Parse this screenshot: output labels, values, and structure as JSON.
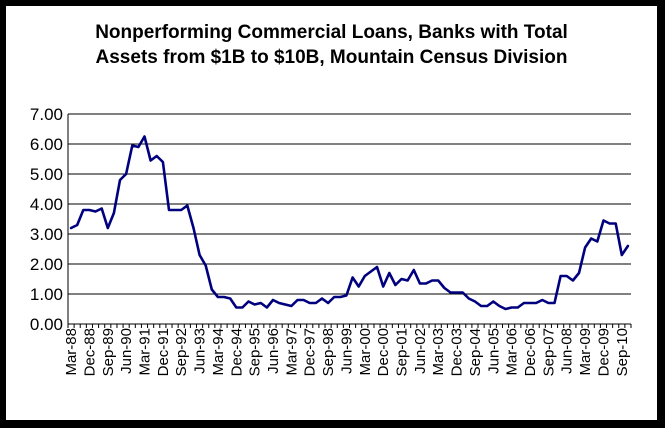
{
  "chart_data": {
    "type": "line",
    "title": "Nonperforming Commercial Loans, Banks with Total Assets from $1B to $10B, Mountain Census Division",
    "title_lines": [
      "Nonperforming Commercial Loans, Banks with Total",
      "Assets from $1B to $10B, Mountain Census Division"
    ],
    "xlabel": "",
    "ylabel": "",
    "ylim": [
      0,
      7
    ],
    "y_ticks": [
      "0.00",
      "1.00",
      "2.00",
      "3.00",
      "4.00",
      "5.00",
      "6.00",
      "7.00"
    ],
    "grid": true,
    "legend": "none",
    "line_color": "#00007f",
    "x_tick_labels": [
      "Mar-88",
      "Dec-88",
      "Sep-89",
      "Jun-90",
      "Mar-91",
      "Dec-91",
      "Sep-92",
      "Jun-93",
      "Mar-94",
      "Dec-94",
      "Sep-95",
      "Jun-96",
      "Mar-97",
      "Dec-97",
      "Sep-98",
      "Jun-99",
      "Mar-00",
      "Dec-00",
      "Sep-01",
      "Jun-02",
      "Mar-03",
      "Dec-03",
      "Sep-04",
      "Jun-05",
      "Mar-06",
      "Dec-06",
      "Sep-07",
      "Jun-08",
      "Mar-09",
      "Dec-09",
      "Sep-10"
    ],
    "x": [
      "Mar-88",
      "Jun-88",
      "Sep-88",
      "Dec-88",
      "Mar-89",
      "Jun-89",
      "Sep-89",
      "Dec-89",
      "Mar-90",
      "Jun-90",
      "Sep-90",
      "Dec-90",
      "Mar-91",
      "Jun-91",
      "Sep-91",
      "Dec-91",
      "Mar-92",
      "Jun-92",
      "Sep-92",
      "Dec-92",
      "Mar-93",
      "Jun-93",
      "Sep-93",
      "Dec-93",
      "Mar-94",
      "Jun-94",
      "Sep-94",
      "Dec-94",
      "Mar-95",
      "Jun-95",
      "Sep-95",
      "Dec-95",
      "Mar-96",
      "Jun-96",
      "Sep-96",
      "Dec-96",
      "Mar-97",
      "Jun-97",
      "Sep-97",
      "Dec-97",
      "Mar-98",
      "Jun-98",
      "Sep-98",
      "Dec-98",
      "Mar-99",
      "Jun-99",
      "Sep-99",
      "Dec-99",
      "Mar-00",
      "Jun-00",
      "Sep-00",
      "Dec-00",
      "Mar-01",
      "Jun-01",
      "Sep-01",
      "Dec-01",
      "Mar-02",
      "Jun-02",
      "Sep-02",
      "Dec-02",
      "Mar-03",
      "Jun-03",
      "Sep-03",
      "Dec-03",
      "Mar-04",
      "Jun-04",
      "Sep-04",
      "Dec-04",
      "Mar-05",
      "Jun-05",
      "Sep-05",
      "Dec-05",
      "Mar-06",
      "Jun-06",
      "Sep-06",
      "Dec-06",
      "Mar-07",
      "Jun-07",
      "Sep-07",
      "Dec-07",
      "Mar-08",
      "Jun-08",
      "Sep-08",
      "Dec-08",
      "Mar-09",
      "Jun-09",
      "Sep-09",
      "Dec-09",
      "Mar-10",
      "Jun-10",
      "Sep-10",
      "Dec-10"
    ],
    "values": [
      3.2,
      3.3,
      3.8,
      3.8,
      3.75,
      3.85,
      3.2,
      3.7,
      4.8,
      5.0,
      5.95,
      5.9,
      6.25,
      5.45,
      5.6,
      5.4,
      3.8,
      3.8,
      3.8,
      3.95,
      3.2,
      2.3,
      1.95,
      1.15,
      0.9,
      0.9,
      0.85,
      0.55,
      0.55,
      0.75,
      0.65,
      0.7,
      0.55,
      0.8,
      0.7,
      0.65,
      0.6,
      0.8,
      0.8,
      0.7,
      0.7,
      0.85,
      0.7,
      0.9,
      0.9,
      0.95,
      1.55,
      1.25,
      1.6,
      1.75,
      1.9,
      1.25,
      1.7,
      1.3,
      1.5,
      1.45,
      1.8,
      1.35,
      1.35,
      1.45,
      1.45,
      1.2,
      1.05,
      1.05,
      1.05,
      0.85,
      0.75,
      0.6,
      0.6,
      0.75,
      0.6,
      0.5,
      0.55,
      0.55,
      0.7,
      0.7,
      0.7,
      0.8,
      0.7,
      0.7,
      1.6,
      1.6,
      1.45,
      1.7,
      2.55,
      2.85,
      2.75,
      3.45,
      3.35,
      3.35,
      2.3,
      2.6
    ]
  }
}
